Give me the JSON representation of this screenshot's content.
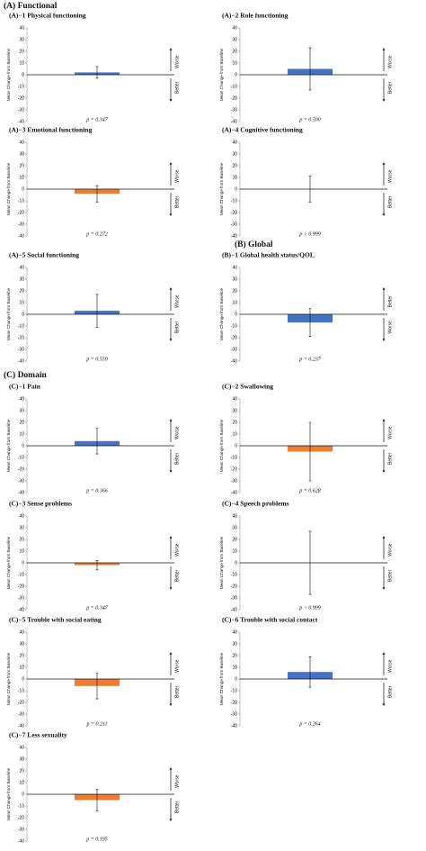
{
  "sections": [
    "(A) Functional",
    "(B) Global",
    "(C) Domain"
  ],
  "chart_data": [
    {
      "type": "bar",
      "title": "(A)−1 Physical functioning",
      "ylabel": "Mean Change from Baseline",
      "categories": [
        null
      ],
      "values": [
        2
      ],
      "errors": [
        5
      ],
      "color": "#4472c4",
      "ylim": [
        -40,
        40
      ],
      "yticks": [
        -40,
        -30,
        -20,
        -10,
        0,
        10,
        20,
        30,
        40
      ],
      "annotation": "p = 0.347",
      "up_label": "Worse",
      "down_label": "Better"
    },
    {
      "type": "bar",
      "title": "(A)−2 Role functioning",
      "ylabel": "Mean Change from Baseline",
      "categories": [
        null
      ],
      "values": [
        5
      ],
      "errors": [
        18
      ],
      "color": "#4472c4",
      "ylim": [
        -40,
        40
      ],
      "yticks": [
        -40,
        -30,
        -20,
        -10,
        0,
        10,
        20,
        30,
        40
      ],
      "annotation": "p = 0.500",
      "up_label": "Worse",
      "down_label": "Better"
    },
    {
      "type": "bar",
      "title": "(A)−3 Emotional functioning",
      "ylabel": "Mean Change from Baseline",
      "categories": [
        null
      ],
      "values": [
        -4
      ],
      "errors": [
        7
      ],
      "color": "#ed7d31",
      "ylim": [
        -40,
        40
      ],
      "yticks": [
        -40,
        -30,
        -20,
        -10,
        0,
        10,
        20,
        30,
        40
      ],
      "annotation": "p = 0.272",
      "up_label": "Worse",
      "down_label": "Better"
    },
    {
      "type": "bar",
      "title": "(A)−4 Cognitive functioning",
      "ylabel": "Mean Change from Baseline",
      "categories": [
        null
      ],
      "values": [
        0
      ],
      "errors": [
        11
      ],
      "color": "#4472c4",
      "ylim": [
        -40,
        40
      ],
      "yticks": [
        -40,
        -30,
        -20,
        -10,
        0,
        10,
        20,
        30,
        40
      ],
      "annotation": "p > 0.999",
      "up_label": "Worse",
      "down_label": "Better"
    },
    {
      "type": "bar",
      "title": "(A)−5 Social functioning",
      "ylabel": "Mean Change from Baseline",
      "categories": [
        null
      ],
      "values": [
        3
      ],
      "errors": [
        14
      ],
      "color": "#4472c4",
      "ylim": [
        -40,
        40
      ],
      "yticks": [
        -40,
        -30,
        -20,
        -10,
        0,
        10,
        20,
        30,
        40
      ],
      "annotation": "p = 0.559",
      "up_label": "Worse",
      "down_label": "Better"
    },
    {
      "type": "bar",
      "title": "(B)−1 Global health status/QOL",
      "ylabel": "Mean Change from Baseline",
      "categories": [
        null
      ],
      "values": [
        -7
      ],
      "errors": [
        12
      ],
      "color": "#4472c4",
      "ylim": [
        -40,
        40
      ],
      "yticks": [
        -40,
        -30,
        -20,
        -10,
        0,
        10,
        20,
        30,
        40
      ],
      "annotation": "p = 0.237",
      "up_label": "Better",
      "down_label": "Worse"
    },
    {
      "type": "bar",
      "title": "(C)−1 Pain",
      "ylabel": "Mean Change from Baseline",
      "categories": [
        null
      ],
      "values": [
        4
      ],
      "errors": [
        11
      ],
      "color": "#4472c4",
      "ylim": [
        -40,
        40
      ],
      "yticks": [
        -40,
        -30,
        -20,
        -10,
        0,
        10,
        20,
        30,
        40
      ],
      "annotation": "p = 0.366",
      "up_label": "Worse",
      "down_label": "Better"
    },
    {
      "type": "bar",
      "title": "(C)−2 Swallowing",
      "ylabel": "Mean Change from Baseline",
      "categories": [
        null
      ],
      "values": [
        -5
      ],
      "errors": [
        25
      ],
      "color": "#ed7d31",
      "ylim": [
        -40,
        40
      ],
      "yticks": [
        -40,
        -30,
        -20,
        -10,
        0,
        10,
        20,
        30,
        40
      ],
      "annotation": "p = 0.628",
      "up_label": "Worse",
      "down_label": "Better"
    },
    {
      "type": "bar",
      "title": "(C)−3 Sense problems",
      "ylabel": "Mean Change from Baseline",
      "categories": [
        null
      ],
      "values": [
        -2
      ],
      "errors": [
        4
      ],
      "color": "#ed7d31",
      "ylim": [
        -40,
        40
      ],
      "yticks": [
        -40,
        -30,
        -20,
        -10,
        0,
        10,
        20,
        30,
        40
      ],
      "annotation": "p = 0.347",
      "up_label": "Worse",
      "down_label": "Better"
    },
    {
      "type": "bar",
      "title": "(C)−4 Speech problems",
      "ylabel": "Mean Change from Baseline",
      "categories": [
        null
      ],
      "values": [
        0
      ],
      "errors": [
        27
      ],
      "color": "#4472c4",
      "ylim": [
        -40,
        40
      ],
      "yticks": [
        -40,
        -30,
        -20,
        -10,
        0,
        10,
        20,
        30,
        40
      ],
      "annotation": "p > 0.999",
      "up_label": "Worse",
      "down_label": "Better"
    },
    {
      "type": "bar",
      "title": "(C)−5 Trouble with social eating",
      "ylabel": "Mean Change from Baseline",
      "categories": [
        null
      ],
      "values": [
        -6
      ],
      "errors": [
        11
      ],
      "color": "#ed7d31",
      "ylim": [
        -40,
        40
      ],
      "yticks": [
        -40,
        -30,
        -20,
        -10,
        0,
        10,
        20,
        30,
        40
      ],
      "annotation": "p = 0.211",
      "up_label": "Worse",
      "down_label": "Better"
    },
    {
      "type": "bar",
      "title": "(C)−6 Trouble with social contact",
      "ylabel": "Mean Change from Baseline",
      "categories": [
        null
      ],
      "values": [
        6
      ],
      "errors": [
        13
      ],
      "color": "#4472c4",
      "ylim": [
        -40,
        40
      ],
      "yticks": [
        -40,
        -30,
        -20,
        -10,
        0,
        10,
        20,
        30,
        40
      ],
      "annotation": "p = 0.264",
      "up_label": "Worse",
      "down_label": "Better"
    },
    {
      "type": "bar",
      "title": "(C)−7 Less sexuality",
      "ylabel": "Mean Change from Baseline",
      "categories": [
        null
      ],
      "values": [
        -5
      ],
      "errors": [
        9
      ],
      "color": "#ed7d31",
      "ylim": [
        -40,
        40
      ],
      "yticks": [
        -40,
        -30,
        -20,
        -10,
        0,
        10,
        20,
        30,
        40
      ],
      "annotation": "p = 0.195",
      "up_label": "Worse",
      "down_label": "Better"
    }
  ]
}
